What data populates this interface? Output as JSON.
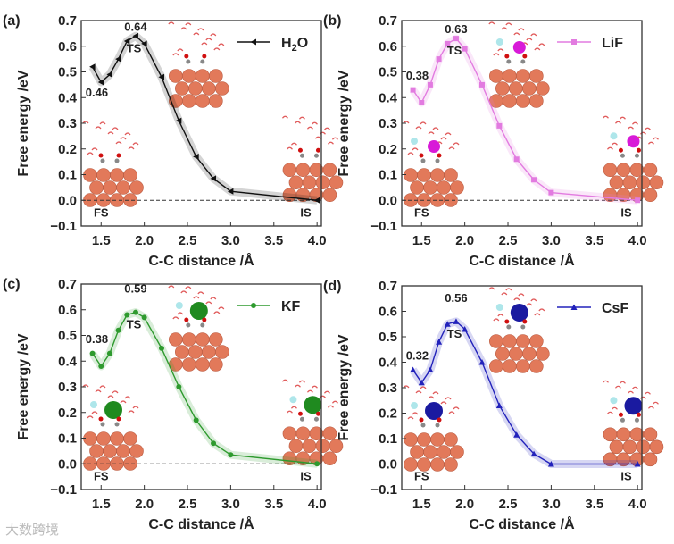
{
  "chart_data": [
    {
      "type": "line",
      "panel_label": "(a)",
      "legend": "H2O",
      "color": "#111111",
      "marker": "triangle-left",
      "xlabel": "C-C distance /Å",
      "ylabel": "Free energy /eV",
      "xlim": [
        1.27,
        4.05
      ],
      "ylim": [
        -0.1,
        0.7
      ],
      "xticks": [
        "1.5",
        "2.0",
        "2.5",
        "3.0",
        "3.5",
        "4.0"
      ],
      "yticks": [
        "-0.1",
        "0.0",
        "0.1",
        "0.2",
        "0.3",
        "0.4",
        "0.5",
        "0.6",
        "0.7"
      ],
      "x": [
        1.4,
        1.5,
        1.6,
        1.7,
        1.8,
        1.9,
        2.0,
        2.2,
        2.4,
        2.6,
        2.8,
        3.0,
        4.0
      ],
      "y": [
        0.52,
        0.46,
        0.49,
        0.55,
        0.62,
        0.64,
        0.61,
        0.48,
        0.31,
        0.17,
        0.085,
        0.035,
        0.0
      ],
      "annotations": {
        "min": "0.46",
        "max": "0.64",
        "ts": "TS",
        "fs": "FS",
        "is": "IS"
      }
    },
    {
      "type": "line",
      "panel_label": "(b)",
      "legend": "LiF",
      "color": "#e27be0",
      "marker": "square",
      "xlabel": "C-C distance /Å",
      "ylabel": "Free energy /eV",
      "xlim": [
        1.27,
        4.05
      ],
      "ylim": [
        -0.1,
        0.7
      ],
      "xticks": [
        "1.5",
        "2.0",
        "2.5",
        "3.0",
        "3.5",
        "4.0"
      ],
      "yticks": [
        "-0.1",
        "0.0",
        "0.1",
        "0.2",
        "0.3",
        "0.4",
        "0.5",
        "0.6",
        "0.7"
      ],
      "x": [
        1.4,
        1.5,
        1.6,
        1.7,
        1.8,
        1.9,
        2.0,
        2.2,
        2.4,
        2.6,
        2.8,
        3.0,
        4.0
      ],
      "y": [
        0.43,
        0.38,
        0.45,
        0.55,
        0.61,
        0.63,
        0.59,
        0.45,
        0.29,
        0.16,
        0.08,
        0.03,
        0.0
      ],
      "annotations": {
        "min": "0.38",
        "max": "0.63",
        "ts": "TS",
        "fs": "FS",
        "is": "IS"
      }
    },
    {
      "type": "line",
      "panel_label": "(c)",
      "legend": "KF",
      "color": "#2e9a2e",
      "marker": "circle",
      "xlabel": "C-C distance /Å",
      "ylabel": "Free energy /eV",
      "xlim": [
        1.27,
        4.05
      ],
      "ylim": [
        -0.1,
        0.7
      ],
      "xticks": [
        "1.5",
        "2.0",
        "2.5",
        "3.0",
        "3.5",
        "4.0"
      ],
      "yticks": [
        "-0.1",
        "0.0",
        "0.1",
        "0.2",
        "0.3",
        "0.4",
        "0.5",
        "0.6",
        "0.7"
      ],
      "x": [
        1.4,
        1.5,
        1.6,
        1.7,
        1.8,
        1.9,
        2.0,
        2.2,
        2.4,
        2.6,
        2.8,
        3.0,
        4.0
      ],
      "y": [
        0.43,
        0.38,
        0.43,
        0.52,
        0.58,
        0.59,
        0.57,
        0.45,
        0.3,
        0.17,
        0.08,
        0.035,
        0.0
      ],
      "annotations": {
        "min": "0.38",
        "max": "0.59",
        "ts": "TS",
        "fs": "FS",
        "is": "IS"
      }
    },
    {
      "type": "line",
      "panel_label": "(d)",
      "legend": "CsF",
      "color": "#2222bb",
      "marker": "triangle-up",
      "xlabel": "C-C distance /Å",
      "ylabel": "Free energy /eV",
      "xlim": [
        1.27,
        4.05
      ],
      "ylim": [
        -0.1,
        0.7
      ],
      "xticks": [
        "1.5",
        "2.0",
        "2.5",
        "3.0",
        "3.5",
        "4.0"
      ],
      "yticks": [
        "-0.1",
        "0.0",
        "0.1",
        "0.2",
        "0.3",
        "0.4",
        "0.5",
        "0.6",
        "0.7"
      ],
      "x": [
        1.4,
        1.5,
        1.6,
        1.7,
        1.8,
        1.9,
        2.0,
        2.2,
        2.4,
        2.6,
        2.8,
        3.0,
        4.0
      ],
      "y": [
        0.37,
        0.32,
        0.37,
        0.48,
        0.55,
        0.56,
        0.53,
        0.4,
        0.23,
        0.115,
        0.04,
        0.0,
        0.0
      ],
      "annotations": {
        "min": "0.32",
        "max": "0.56",
        "ts": "TS",
        "fs": "FS",
        "is": "IS"
      }
    }
  ],
  "watermark": "大数跨境"
}
